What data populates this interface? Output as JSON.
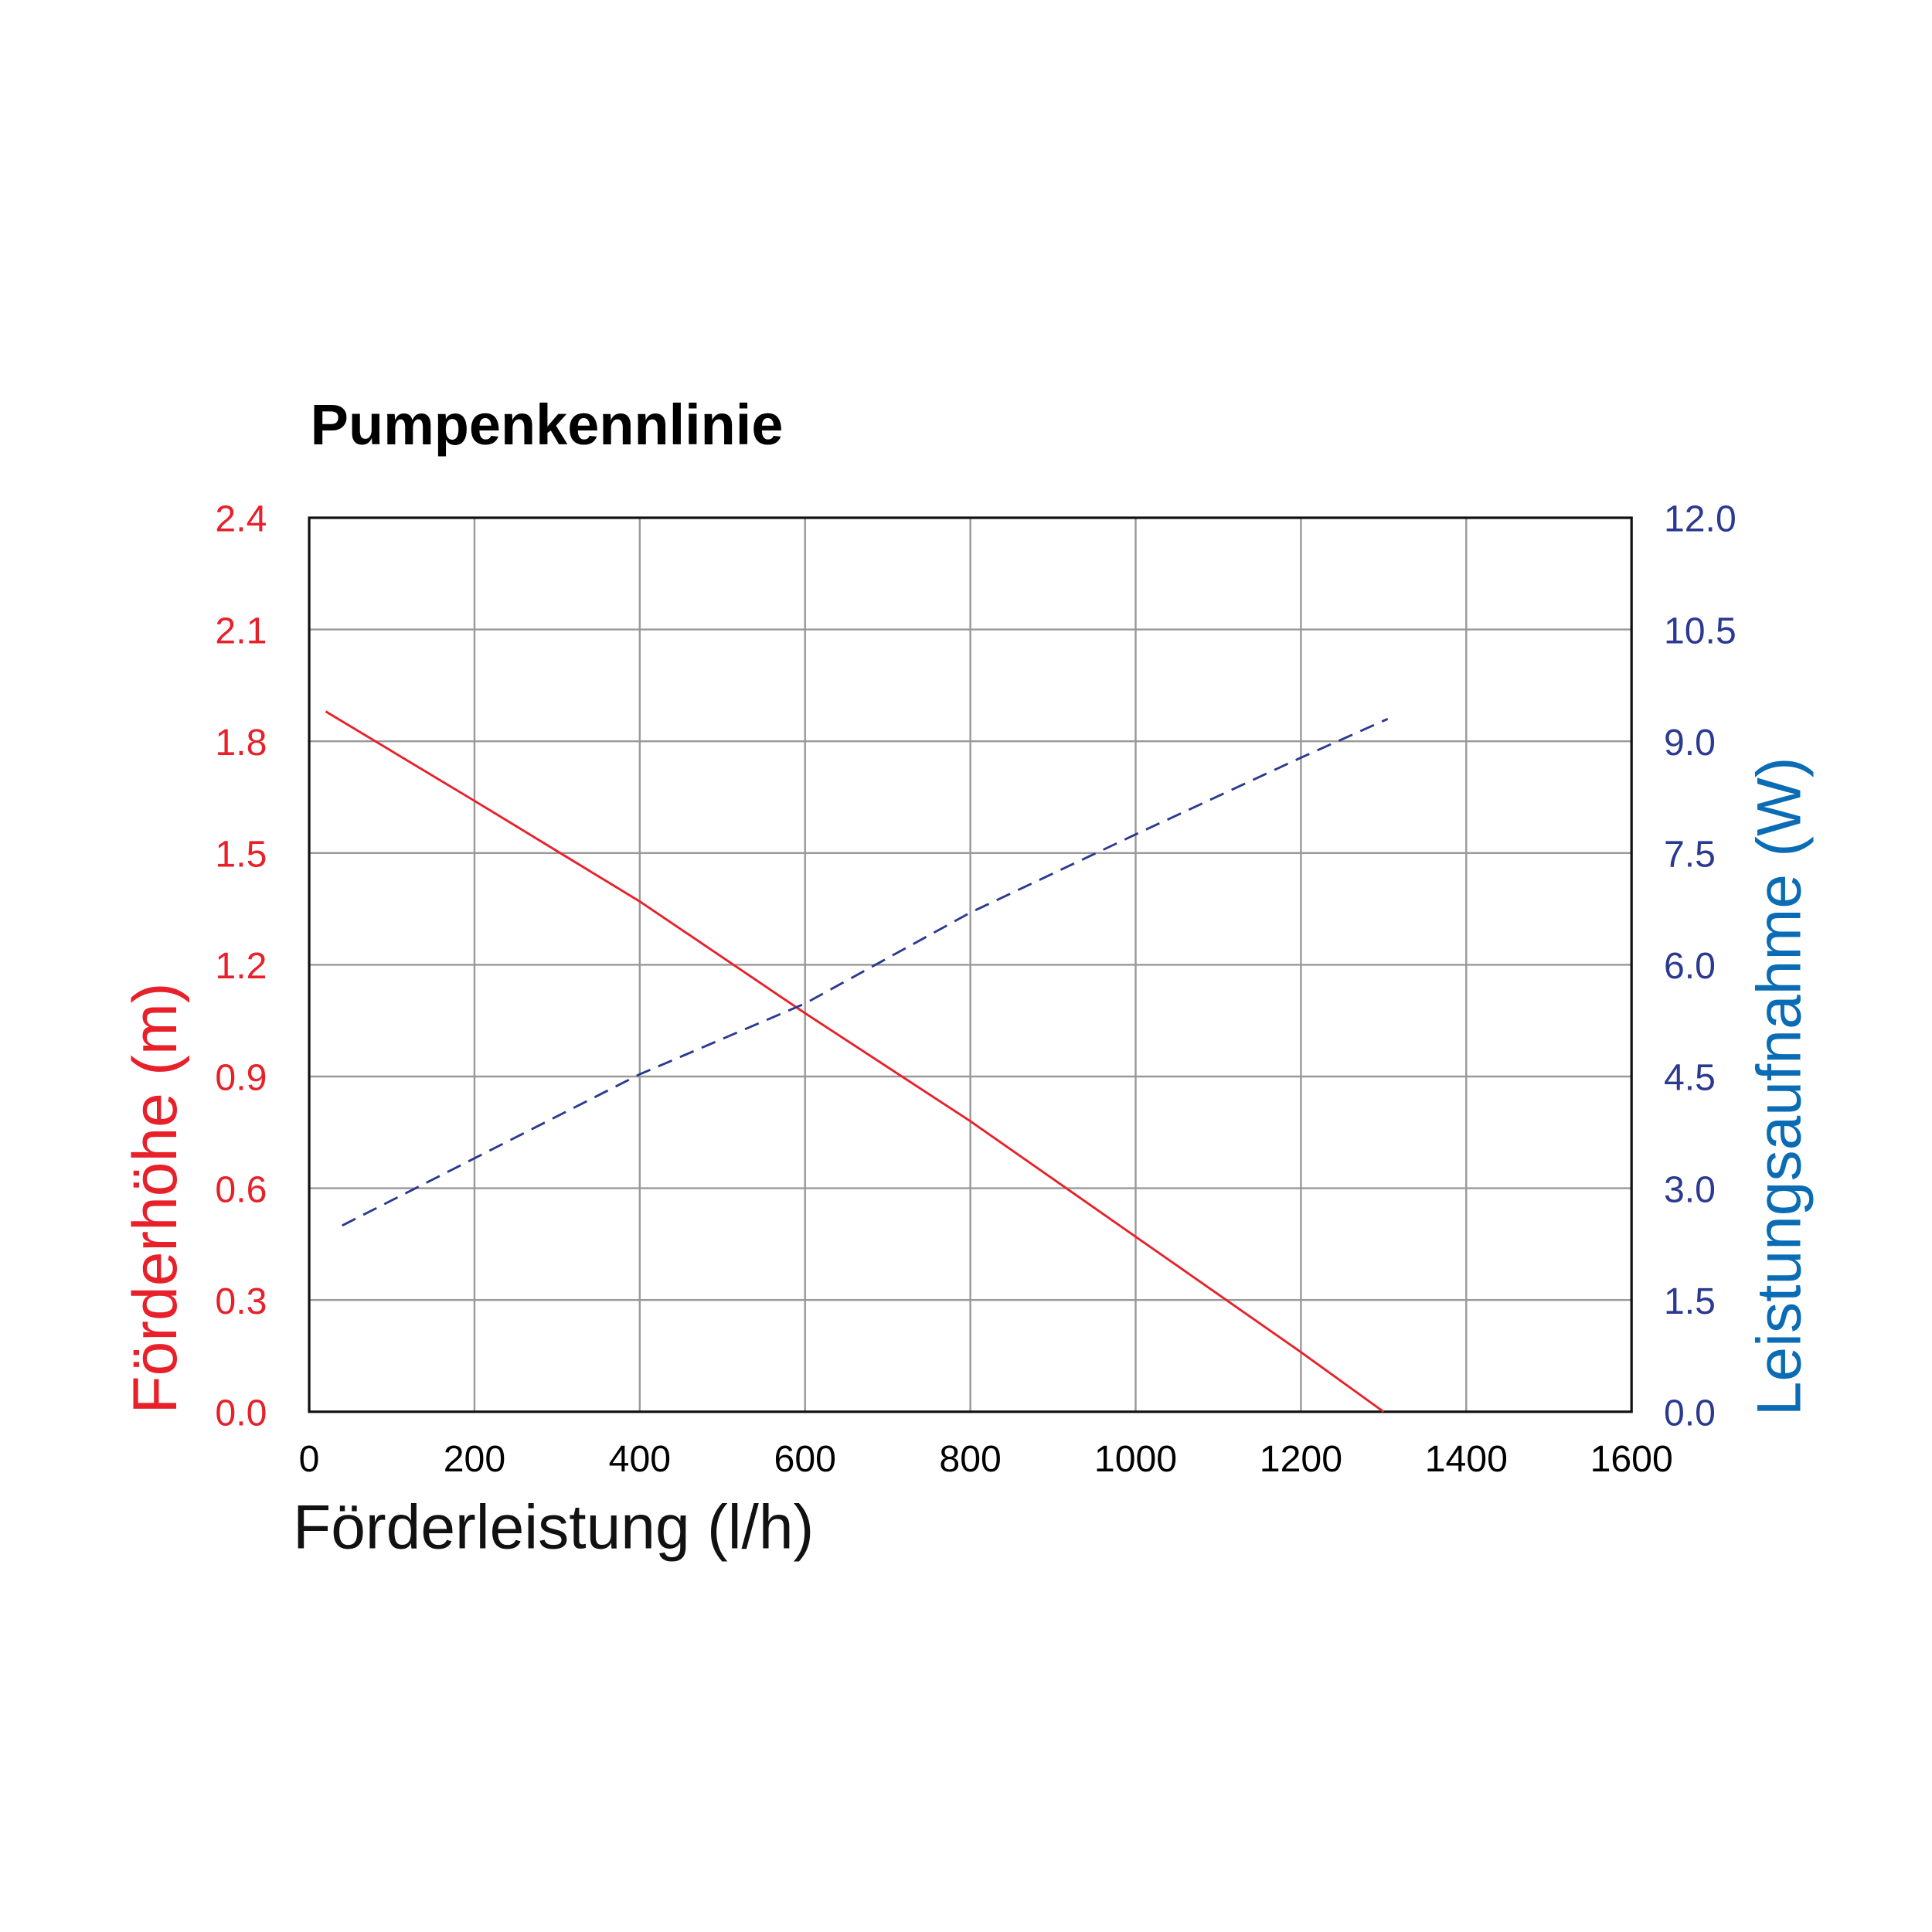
{
  "chart_data": {
    "type": "line",
    "title": "Pumpenkennlinie",
    "x_label": "Förderleistung (l/h)",
    "y_label": "Förderhöhe (m)",
    "y2_label": "Leistungsaufnahme (W)",
    "xlim": [
      0,
      1600
    ],
    "xticks": [
      0,
      200,
      400,
      600,
      800,
      1000,
      1200,
      1400,
      1600
    ],
    "ylim": [
      0,
      2.4
    ],
    "yticks": [
      {
        "value": 0,
        "label": "0.0"
      },
      0.3,
      0.6,
      0.9,
      1.2,
      1.5,
      1.8,
      2.1,
      2.4
    ],
    "y2lim": [
      0,
      12
    ],
    "y2ticks": [
      {
        "value": 0,
        "label": "0.0"
      },
      1.5,
      {
        "value": 3,
        "label": "3.0"
      },
      4.5,
      {
        "value": 6,
        "label": "6.0"
      },
      7.5,
      {
        "value": 9,
        "label": "9.0"
      },
      10.5,
      {
        "value": 12,
        "label": "12.0"
      }
    ],
    "grid": true,
    "series": [
      {
        "name": "Förderhöhe",
        "color": "#e8202a",
        "x": [
          20,
          200,
          400,
          600,
          800,
          1000,
          1200,
          1300
        ],
        "values": [
          1.88,
          1.64,
          1.37,
          1.07,
          0.78,
          0.47,
          0.16,
          0
        ]
      },
      {
        "name": "Leistungsaufnahme",
        "color": "#2b3990",
        "axis": "y2",
        "dashed": true,
        "x": [
          40,
          400,
          600,
          800,
          1000,
          1200,
          1305
        ],
        "values": [
          2.5,
          4.53,
          5.48,
          6.7,
          7.75,
          8.78,
          9.3
        ]
      }
    ]
  }
}
